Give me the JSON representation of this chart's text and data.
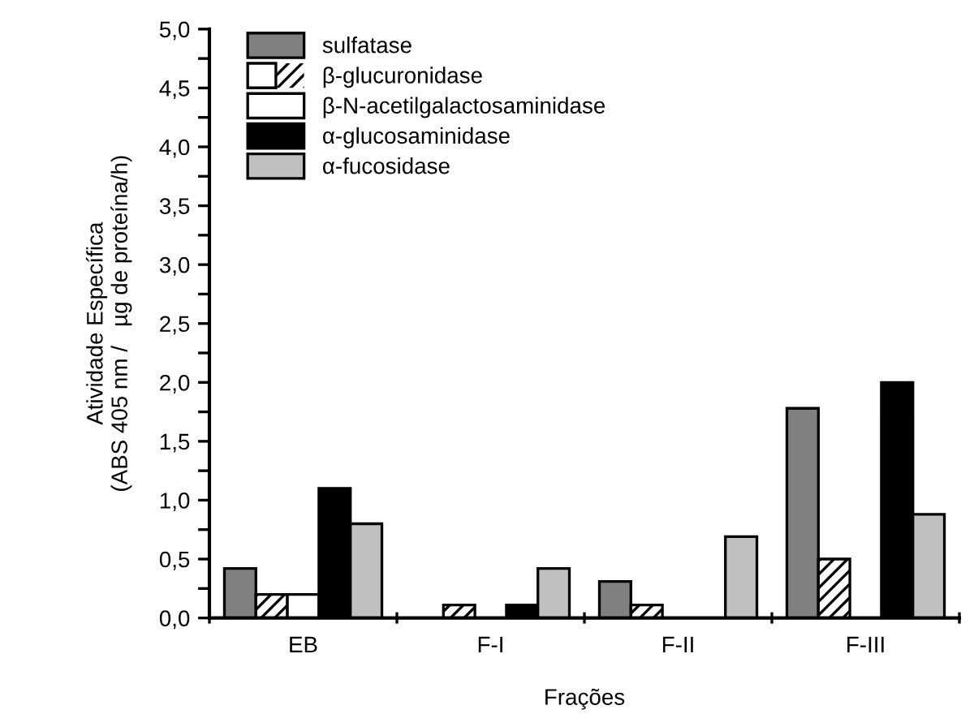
{
  "chart_data": {
    "type": "bar",
    "xlabel": "Frações",
    "ylabel": "Atividade Específica\n(ABS 405 nm /   µg de proteína/h)",
    "categories": [
      "EB",
      "F-I",
      "F-II",
      "F-III"
    ],
    "series": [
      {
        "name": "sulfatase",
        "color": "#808080",
        "values": [
          0.42,
          null,
          0.31,
          1.78
        ]
      },
      {
        "name": "β-glucuronidase",
        "color": "#ffffff",
        "values": [
          0.2,
          0.11,
          0.11,
          0.5
        ]
      },
      {
        "name": "β-N-acetilgalactosaminidase",
        "color": "#ffffff",
        "values": [
          0.2,
          null,
          null,
          null
        ]
      },
      {
        "name": "α-glucosaminidase",
        "color": "#000000",
        "values": [
          1.1,
          0.11,
          null,
          2.0
        ]
      },
      {
        "name": "α-fucosidase",
        "color": "#c0c0c0",
        "values": [
          0.8,
          0.42,
          0.69,
          0.88
        ]
      }
    ],
    "ylim": [
      0,
      5
    ],
    "yticks": [
      {
        "value": 0,
        "label": "0,0"
      },
      {
        "value": 0.25,
        "label": null
      },
      {
        "value": 0.5,
        "label": "0,5"
      },
      {
        "value": 0.75,
        "label": null
      },
      {
        "value": 1.0,
        "label": "1,0"
      },
      {
        "value": 1.25,
        "label": null
      },
      {
        "value": 1.5,
        "label": "1,5"
      },
      {
        "value": 1.75,
        "label": null
      },
      {
        "value": 2.0,
        "label": "2,0"
      },
      {
        "value": 2.25,
        "label": null
      },
      {
        "value": 2.5,
        "label": "2,5"
      },
      {
        "value": 2.75,
        "label": null
      },
      {
        "value": 3.0,
        "label": "3,0"
      },
      {
        "value": 3.25,
        "label": null
      },
      {
        "value": 3.5,
        "label": "3,5"
      },
      {
        "value": 3.75,
        "label": null
      },
      {
        "value": 4.0,
        "label": "4,0"
      },
      {
        "value": 4.25,
        "label": null
      },
      {
        "value": 4.5,
        "label": "4,5"
      },
      {
        "value": 4.75,
        "label": null
      },
      {
        "value": 5.0,
        "label": "5,0"
      }
    ],
    "grid": false,
    "legend": "top left"
  }
}
